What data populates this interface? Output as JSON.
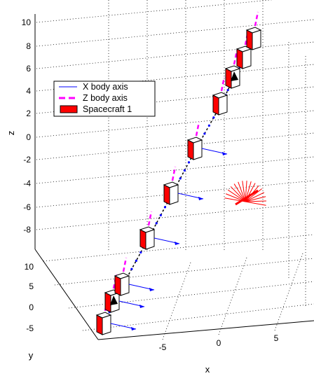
{
  "chart_data": {
    "type": "scatter",
    "view": "3d",
    "xlabel": "x",
    "ylabel": "y",
    "zlabel": "z",
    "x_ticks": [
      "-5",
      "0",
      "5"
    ],
    "y_ticks": [
      "10",
      "5",
      "0",
      "-5"
    ],
    "z_ticks": [
      "10",
      "8",
      "6",
      "4",
      "2",
      "0",
      "-2",
      "-4",
      "-6",
      "-8"
    ],
    "grid": true,
    "legend_placement": "upper-left",
    "legend": [
      {
        "label": "X body axis",
        "style": "line",
        "color": "#0000ff"
      },
      {
        "label": "Z body axis",
        "style": "dashed",
        "color": "#ff00ff"
      },
      {
        "label": "Spacecraft 1",
        "style": "patch",
        "color": "#ff0000"
      }
    ],
    "trajectory": {
      "name": "Spacecraft 1",
      "points": [
        {
          "x": -8,
          "y": -7,
          "z": -11
        },
        {
          "x": -7,
          "y": -5,
          "z": -9
        },
        {
          "x": -6,
          "y": -3,
          "z": -7
        },
        {
          "x": -5,
          "y": -1,
          "z": -5
        },
        {
          "x": -4,
          "y": 1,
          "z": -3
        },
        {
          "x": -3,
          "y": 3,
          "z": -1
        },
        {
          "x": -2,
          "y": 5,
          "z": 1
        },
        {
          "x": -1,
          "y": 7,
          "z": 3
        },
        {
          "x": 0,
          "y": 9,
          "z": 5
        },
        {
          "x": 1,
          "y": 10,
          "z": 7
        }
      ]
    }
  },
  "colors": {
    "body": "#ff0000",
    "x_axis": "#0000ff",
    "z_axis": "#ff00ff",
    "burst": "#ff0000",
    "arrow": "#000000"
  }
}
